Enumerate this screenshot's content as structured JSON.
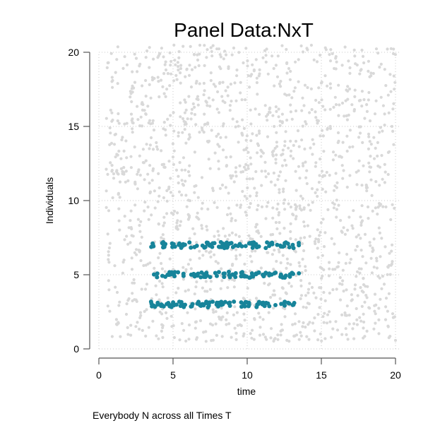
{
  "chart_data": {
    "type": "scatter",
    "title": "Panel Data:NxT",
    "xlabel": "time",
    "ylabel": "Individuals",
    "note": "Everybody N across all Times T",
    "xlim": [
      0,
      20
    ],
    "ylim": [
      0,
      20
    ],
    "xticks": [
      0,
      5,
      10,
      15,
      20
    ],
    "yticks": [
      0,
      5,
      10,
      15,
      20
    ],
    "grid": true,
    "background_series": {
      "description_range": {
        "x": [
          0.5,
          20
        ],
        "y": [
          0.5,
          20.5
        ]
      },
      "color": "#d9d9d9",
      "point_count": 1600
    },
    "series": [
      {
        "color": "#17849a",
        "x_range": [
          3.5,
          13.5
        ],
        "y_center": 7,
        "y_jitter": 0.2,
        "point_count": 90
      },
      {
        "color": "#17849a",
        "x_range": [
          3.5,
          13.5
        ],
        "y_center": 5,
        "y_jitter": 0.2,
        "point_count": 90
      },
      {
        "color": "#17849a",
        "x_range": [
          3.5,
          13.5
        ],
        "y_center": 3,
        "y_jitter": 0.2,
        "point_count": 90
      }
    ],
    "colors": {
      "axis": "#555555",
      "grid": "#c8c8c8",
      "highlight": "#17849a",
      "background_points": "#d9d9d9"
    }
  }
}
